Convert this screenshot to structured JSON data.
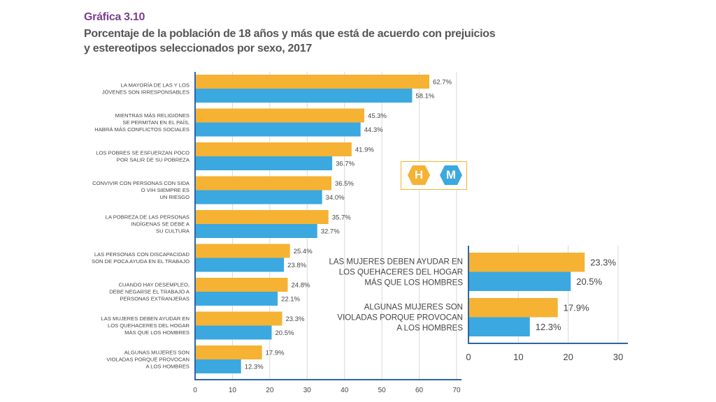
{
  "header": {
    "figure_label": "Gráfica 3.10",
    "title_line1": "Porcentaje de la población de 18 años y más que está de acuerdo con prejuicios",
    "title_line2": "y estereotipos seleccionados por sexo, 2017"
  },
  "legend": {
    "hombres_symbol": "H",
    "mujeres_symbol": "M"
  },
  "colors": {
    "hombres": "#f5b233",
    "mujeres": "#3ba8e0",
    "axis": "#2f64a6",
    "grid": "#d9d9d9",
    "label": "#444444"
  },
  "chart_data": [
    {
      "type": "bar",
      "orientation": "horizontal",
      "xlim": [
        0,
        70
      ],
      "xticks": [
        0,
        10,
        20,
        30,
        40,
        50,
        60,
        70
      ],
      "grid": true,
      "categories": [
        [
          "LA MAYORÍA DE LAS Y LOS",
          "JÓVENES SON IRRESPONSABLES"
        ],
        [
          "MIENTRAS MÁS RELIGIONES",
          "SE PERMITAN EN EL PAÍS,",
          "HABRÁ MÁS CONFLICTOS SOCIALES"
        ],
        [
          "LOS POBRES SE ESFUERZAN POCO",
          "POR SALIR DE SU POBREZA"
        ],
        [
          "CONVIVIR CON PERSONAS CON SIDA",
          "O VIH SIEMPRE ES",
          "UN RIESGO"
        ],
        [
          "LA POBREZA DE LAS PERSONAS",
          "INDÍGENAS SE DEBE A",
          "SU CULTURA"
        ],
        [
          "LAS PERSONAS CON DISCAPACIDAD",
          "SON DE POCA AYUDA EN EL TRABAJO"
        ],
        [
          "CUANDO HAY DESEMPLEO,",
          "DEBE NEGARSE EL TRABAJO A",
          "PERSONAS EXTRANJERAS"
        ],
        [
          "LAS MUJERES DEBEN AYUDAR EN",
          "LOS QUEHACERES DEL HOGAR",
          "MÁS QUE LOS HOMBRES"
        ],
        [
          "ALGUNAS MUJERES SON",
          "VIOLADAS PORQUE  PROVOCAN",
          "A LOS HOMBRES"
        ]
      ],
      "series": [
        {
          "key": "hombres",
          "values": [
            62.7,
            45.3,
            41.9,
            36.5,
            35.7,
            25.4,
            24.8,
            23.3,
            17.9
          ],
          "labels": [
            "62.7%",
            "45.3%",
            "41.9%",
            "36.5%",
            "35.7%",
            "25.4%",
            "24.8%",
            "23.3%",
            "17.9%"
          ]
        },
        {
          "key": "mujeres",
          "values": [
            58.1,
            44.3,
            36.7,
            34.0,
            32.7,
            23.8,
            22.1,
            20.5,
            12.3
          ],
          "labels": [
            "58.1%",
            "44.3%",
            "36.7%",
            "34.0%",
            "32.7%",
            "23.8%",
            "22.1%",
            "20.5%",
            "12.3%"
          ]
        }
      ]
    },
    {
      "type": "bar",
      "orientation": "horizontal",
      "xlim": [
        0,
        30
      ],
      "xticks": [
        0,
        10,
        20,
        30
      ],
      "grid": true,
      "categories": [
        [
          "LAS MUJERES DEBEN AYUDAR EN",
          "LOS QUEHACERES DEL HOGAR",
          "MÁS QUE LOS HOMBRES"
        ],
        [
          "ALGUNAS MUJERES SON",
          "VIOLADAS PORQUE  PROVOCAN",
          "A LOS HOMBRES"
        ]
      ],
      "series": [
        {
          "key": "hombres",
          "values": [
            23.3,
            17.9
          ],
          "labels": [
            "23.3%",
            "17.9%"
          ]
        },
        {
          "key": "mujeres",
          "values": [
            20.5,
            12.3
          ],
          "labels": [
            "20.5%",
            "12.3%"
          ]
        }
      ]
    }
  ]
}
